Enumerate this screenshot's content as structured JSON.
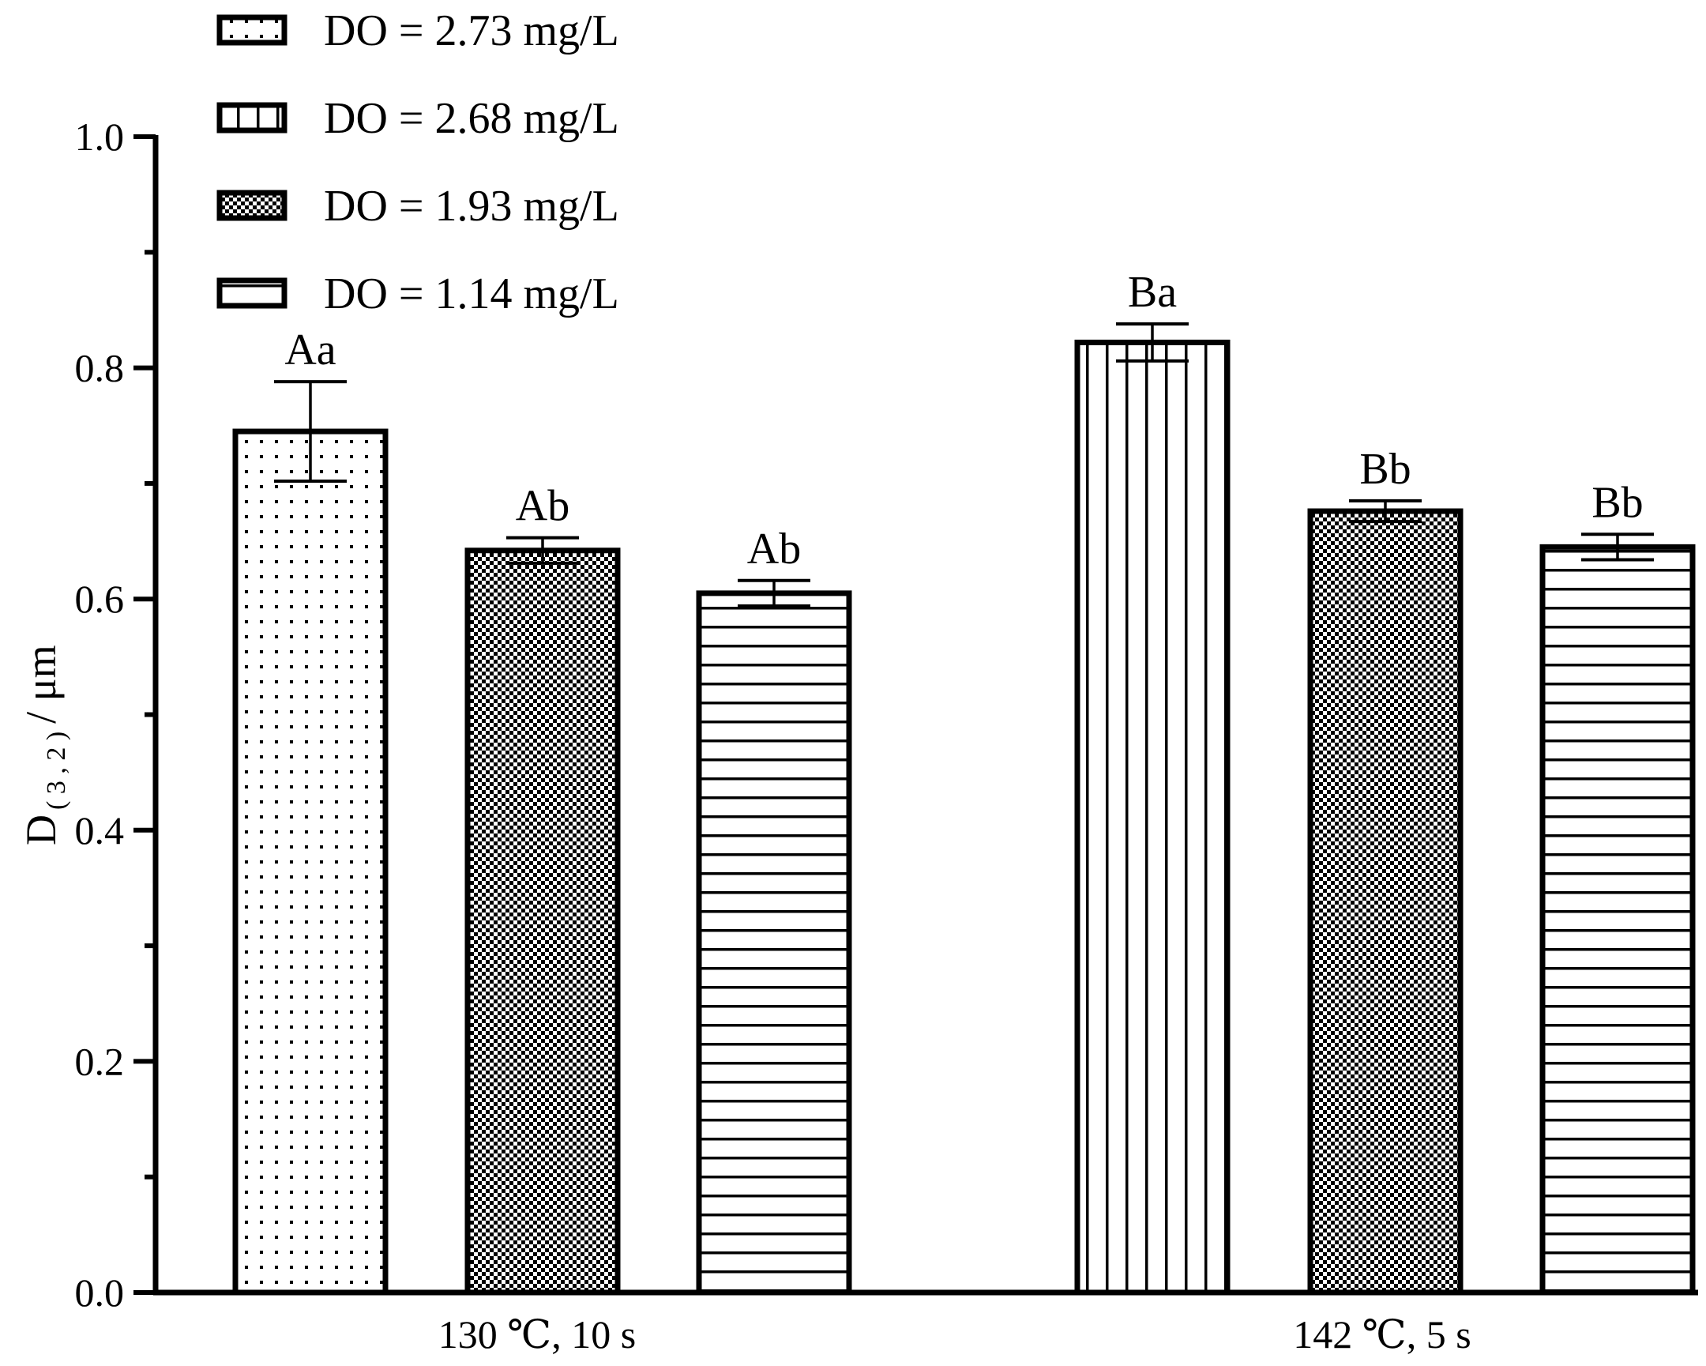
{
  "chart_data": {
    "type": "bar",
    "categories": [
      "130 ℃, 10 s",
      "142 ℃, 5 s"
    ],
    "ylabel": "D",
    "ylabel_subscript": "( 3 , 2 )",
    "ylabel_unit": "/ μm",
    "ylim": [
      0,
      1.0
    ],
    "yticks": [
      "0.0",
      "0.2",
      "0.4",
      "0.6",
      "0.8",
      "1.0"
    ],
    "grid": false,
    "legend_position": "top-left",
    "series": [
      {
        "name": "DO = 2.73 mg/L",
        "pattern": "dots",
        "values": [
          0.745,
          null
        ],
        "errors": [
          0.043,
          null
        ],
        "labels": [
          "Aa",
          null
        ]
      },
      {
        "name": "DO = 2.68 mg/L",
        "pattern": "vertical-lines",
        "values": [
          null,
          0.822
        ],
        "errors": [
          null,
          0.016
        ],
        "labels": [
          null,
          "Ba"
        ]
      },
      {
        "name": "DO = 1.93 mg/L",
        "pattern": "checker",
        "values": [
          0.642,
          0.676
        ],
        "errors": [
          0.011,
          0.009
        ],
        "labels": [
          "Ab",
          "Bb"
        ]
      },
      {
        "name": "DO = 1.14 mg/L",
        "pattern": "horizontal-lines",
        "values": [
          0.605,
          0.645
        ],
        "errors": [
          0.011,
          0.011
        ],
        "labels": [
          "Ab",
          "Bb"
        ]
      }
    ],
    "colors": {
      "stroke": "#000000",
      "fill": "#ffffff"
    }
  }
}
